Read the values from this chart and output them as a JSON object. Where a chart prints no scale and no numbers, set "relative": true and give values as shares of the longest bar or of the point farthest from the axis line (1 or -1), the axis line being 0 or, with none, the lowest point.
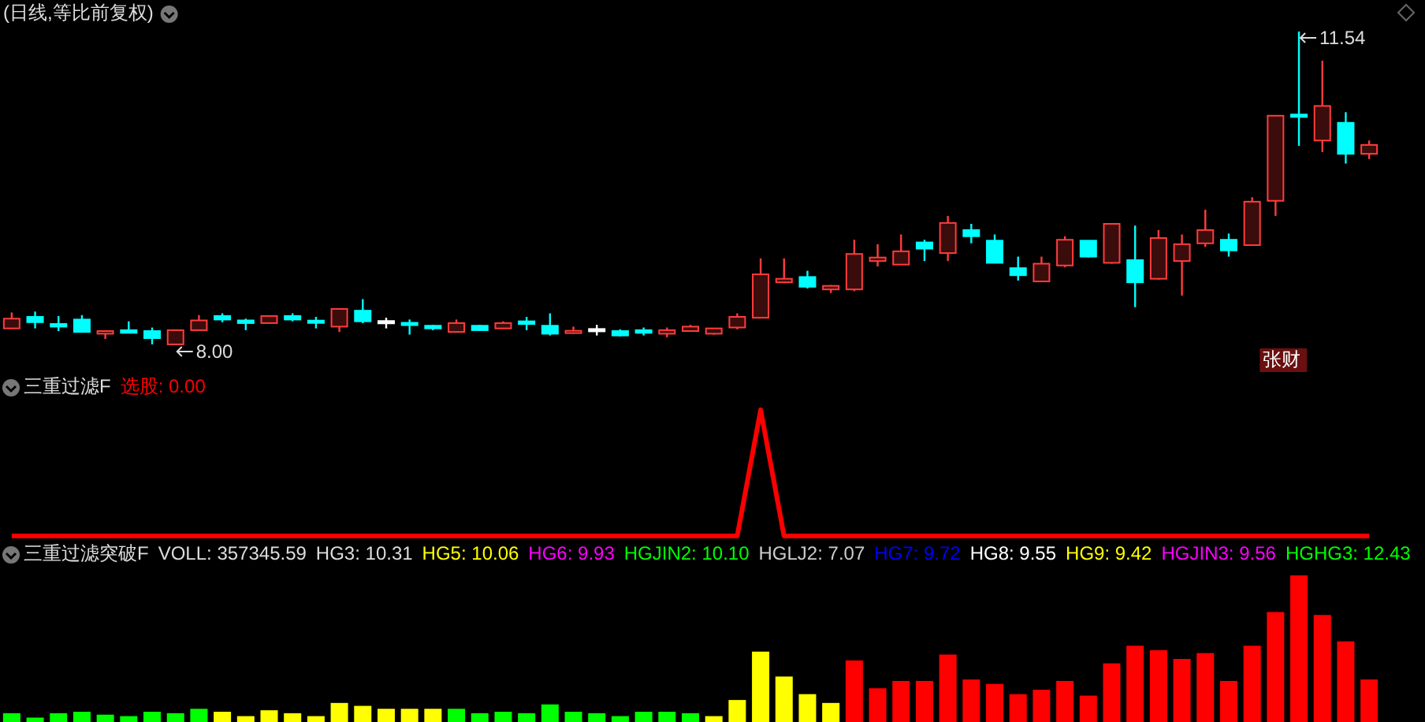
{
  "chart_data": [
    {
      "type": "candlestick",
      "title": "(日线,等比前复权)",
      "categories": [
        null,
        null,
        null,
        null,
        null,
        null,
        null,
        null,
        null,
        null,
        null,
        null,
        null,
        null,
        null,
        null,
        null,
        null,
        null,
        null,
        null,
        null,
        null,
        null,
        null,
        null,
        null,
        null,
        null,
        null,
        null,
        null,
        null,
        null,
        null,
        null,
        null,
        null,
        null,
        null,
        null,
        null,
        null,
        null,
        null,
        null,
        null,
        null,
        null,
        null,
        null,
        null,
        null,
        null,
        null,
        null,
        null,
        null,
        null
      ],
      "ohlc": [
        [
          8.19,
          8.37,
          8.19,
          8.3
        ],
        [
          8.32,
          8.38,
          8.19,
          8.26
        ],
        [
          8.24,
          8.33,
          8.16,
          8.21
        ],
        [
          8.29,
          8.34,
          8.15,
          8.15
        ],
        [
          8.13,
          8.16,
          8.07,
          8.16
        ],
        [
          8.17,
          8.27,
          8.14,
          8.14
        ],
        [
          8.16,
          8.2,
          8.01,
          8.08
        ],
        [
          8.01,
          8.17,
          8.0,
          8.17
        ],
        [
          8.17,
          8.34,
          8.17,
          8.28
        ],
        [
          8.33,
          8.36,
          8.26,
          8.29
        ],
        [
          8.28,
          8.3,
          8.17,
          8.25
        ],
        [
          8.25,
          8.33,
          8.25,
          8.33
        ],
        [
          8.33,
          8.36,
          8.27,
          8.29
        ],
        [
          8.27,
          8.32,
          8.19,
          8.26
        ],
        [
          8.21,
          8.41,
          8.15,
          8.41
        ],
        [
          8.39,
          8.52,
          8.25,
          8.27
        ],
        [
          8.26,
          8.31,
          8.19,
          8.26
        ],
        [
          8.25,
          8.29,
          8.12,
          8.23
        ],
        [
          8.22,
          8.23,
          8.17,
          8.19
        ],
        [
          8.15,
          8.29,
          8.15,
          8.25
        ],
        [
          8.22,
          8.23,
          8.16,
          8.17
        ],
        [
          8.19,
          8.27,
          8.19,
          8.25
        ],
        [
          8.27,
          8.32,
          8.17,
          8.24
        ],
        [
          8.22,
          8.36,
          8.11,
          8.13
        ],
        [
          8.14,
          8.21,
          8.13,
          8.16
        ],
        [
          8.17,
          8.23,
          8.11,
          8.17
        ],
        [
          8.16,
          8.18,
          8.1,
          8.11
        ],
        [
          8.17,
          8.2,
          8.11,
          8.14
        ],
        [
          8.13,
          8.2,
          8.09,
          8.17
        ],
        [
          8.16,
          8.23,
          8.16,
          8.21
        ],
        [
          8.13,
          8.19,
          8.12,
          8.19
        ],
        [
          8.2,
          8.36,
          8.18,
          8.32
        ],
        [
          8.31,
          8.98,
          8.31,
          8.8
        ],
        [
          8.71,
          8.98,
          8.7,
          8.75
        ],
        [
          8.77,
          8.84,
          8.64,
          8.66
        ],
        [
          8.63,
          8.68,
          8.59,
          8.67
        ],
        [
          8.63,
          9.19,
          8.61,
          9.03
        ],
        [
          8.95,
          9.14,
          8.89,
          8.99
        ],
        [
          8.91,
          9.25,
          8.91,
          9.06
        ],
        [
          9.16,
          9.19,
          8.95,
          9.09
        ],
        [
          9.04,
          9.46,
          8.95,
          9.38
        ],
        [
          9.3,
          9.37,
          9.15,
          9.23
        ],
        [
          9.18,
          9.25,
          8.93,
          8.93
        ],
        [
          8.87,
          9.0,
          8.73,
          8.79
        ],
        [
          8.72,
          9.0,
          8.72,
          8.92
        ],
        [
          8.9,
          9.23,
          8.88,
          9.19
        ],
        [
          9.18,
          9.18,
          8.99,
          9.0
        ],
        [
          8.93,
          9.37,
          8.92,
          9.37
        ],
        [
          8.96,
          9.35,
          8.43,
          8.71
        ],
        [
          8.75,
          9.3,
          8.74,
          9.21
        ],
        [
          8.95,
          9.25,
          8.56,
          9.14
        ],
        [
          9.15,
          9.53,
          9.11,
          9.3
        ],
        [
          9.19,
          9.26,
          9.0,
          9.07
        ],
        [
          9.13,
          9.67,
          9.13,
          9.62
        ],
        [
          9.63,
          10.59,
          9.46,
          10.59
        ],
        [
          10.6,
          11.54,
          10.25,
          10.58
        ],
        [
          10.31,
          11.21,
          10.18,
          10.7
        ],
        [
          10.51,
          10.63,
          10.05,
          10.16
        ],
        [
          10.16,
          10.31,
          10.1,
          10.26
        ]
      ],
      "annotations": [
        "11.54",
        "8.00",
        "张财"
      ]
    },
    {
      "type": "line",
      "title": "三重过滤F",
      "relative": true,
      "legend": "top left",
      "categories": [
        null,
        null,
        null,
        null,
        null,
        null,
        null,
        null,
        null,
        null,
        null,
        null,
        null,
        null,
        null,
        null,
        null,
        null,
        null,
        null,
        null,
        null,
        null,
        null,
        null,
        null,
        null,
        null,
        null,
        null,
        null,
        null,
        null,
        null,
        null,
        null,
        null,
        null,
        null,
        null,
        null,
        null,
        null,
        null,
        null,
        null,
        null,
        null,
        null,
        null,
        null,
        null,
        null,
        null,
        null,
        null,
        null,
        null,
        null
      ],
      "series": [
        {
          "name": "选股: 0.00",
          "color": "#ff0000",
          "values": [
            0,
            0,
            0,
            0,
            0,
            0,
            0,
            0,
            0,
            0,
            0,
            0,
            0,
            0,
            0,
            0,
            0,
            0,
            0,
            0,
            0,
            0,
            0,
            0,
            0,
            0,
            0,
            0,
            0,
            0,
            0,
            0,
            1,
            0,
            0,
            0,
            0,
            0,
            0,
            0,
            0,
            0,
            0,
            0,
            0,
            0,
            0,
            0,
            0,
            0,
            0,
            0,
            0,
            0,
            0,
            0,
            0,
            0,
            0
          ]
        }
      ]
    },
    {
      "type": "bar",
      "title": "三重过滤突破F",
      "relative": true,
      "categories": [
        null,
        null,
        null,
        null,
        null,
        null,
        null,
        null,
        null,
        null,
        null,
        null,
        null,
        null,
        null,
        null,
        null,
        null,
        null,
        null,
        null,
        null,
        null,
        null,
        null,
        null,
        null,
        null,
        null,
        null,
        null,
        null,
        null,
        null,
        null,
        null,
        null,
        null,
        null,
        null,
        null,
        null,
        null,
        null,
        null,
        null,
        null,
        null,
        null,
        null,
        null,
        null,
        null,
        null,
        null,
        null,
        null,
        null,
        null
      ],
      "values": [
        0.06,
        0.03,
        0.06,
        0.07,
        0.05,
        0.04,
        0.07,
        0.06,
        0.09,
        0.07,
        0.04,
        0.08,
        0.06,
        0.04,
        0.13,
        0.11,
        0.09,
        0.09,
        0.09,
        0.09,
        0.06,
        0.07,
        0.06,
        0.12,
        0.07,
        0.06,
        0.04,
        0.07,
        0.07,
        0.06,
        0.04,
        0.15,
        0.48,
        0.31,
        0.19,
        0.13,
        0.42,
        0.23,
        0.28,
        0.28,
        0.46,
        0.29,
        0.26,
        0.19,
        0.22,
        0.28,
        0.18,
        0.4,
        0.52,
        0.49,
        0.43,
        0.47,
        0.28,
        0.52,
        0.75,
        1,
        0.73,
        0.55,
        0.29
      ],
      "colors": [
        "#00ff00",
        "#00ff00",
        "#00ff00",
        "#00ff00",
        "#00ff00",
        "#00ff00",
        "#00ff00",
        "#00ff00",
        "#00ff00",
        "#ffff00",
        "#ffff00",
        "#ffff00",
        "#ffff00",
        "#ffff00",
        "#ffff00",
        "#ffff00",
        "#ffff00",
        "#ffff00",
        "#ffff00",
        "#00ff00",
        "#00ff00",
        "#00ff00",
        "#00ff00",
        "#00ff00",
        "#00ff00",
        "#00ff00",
        "#00ff00",
        "#00ff00",
        "#00ff00",
        "#00ff00",
        "#ffff00",
        "#ffff00",
        "#ffff00",
        "#ffff00",
        "#ffff00",
        "#ffff00",
        "#ff0000",
        "#ff0000",
        "#ff0000",
        "#ff0000",
        "#ff0000",
        "#ff0000",
        "#ff0000",
        "#ff0000",
        "#ff0000",
        "#ff0000",
        "#ff0000",
        "#ff0000",
        "#ff0000",
        "#ff0000",
        "#ff0000",
        "#ff0000",
        "#ff0000",
        "#ff0000",
        "#ff0000",
        "#ff0000",
        "#ff0000",
        "#ff0000",
        "#ff0000"
      ],
      "annotations": [
        "VOLL: 357345.59",
        "HG3: 10.31",
        "HG5: 10.06",
        "HG6: 9.93",
        "HGJIN2: 10.10",
        "HGLJ2: 7.07",
        "HG7: 9.72",
        "HG8: 9.55",
        "HG9: 9.42",
        "HGJIN3: 9.56",
        "HGHG3: 12.43"
      ]
    }
  ]
}
